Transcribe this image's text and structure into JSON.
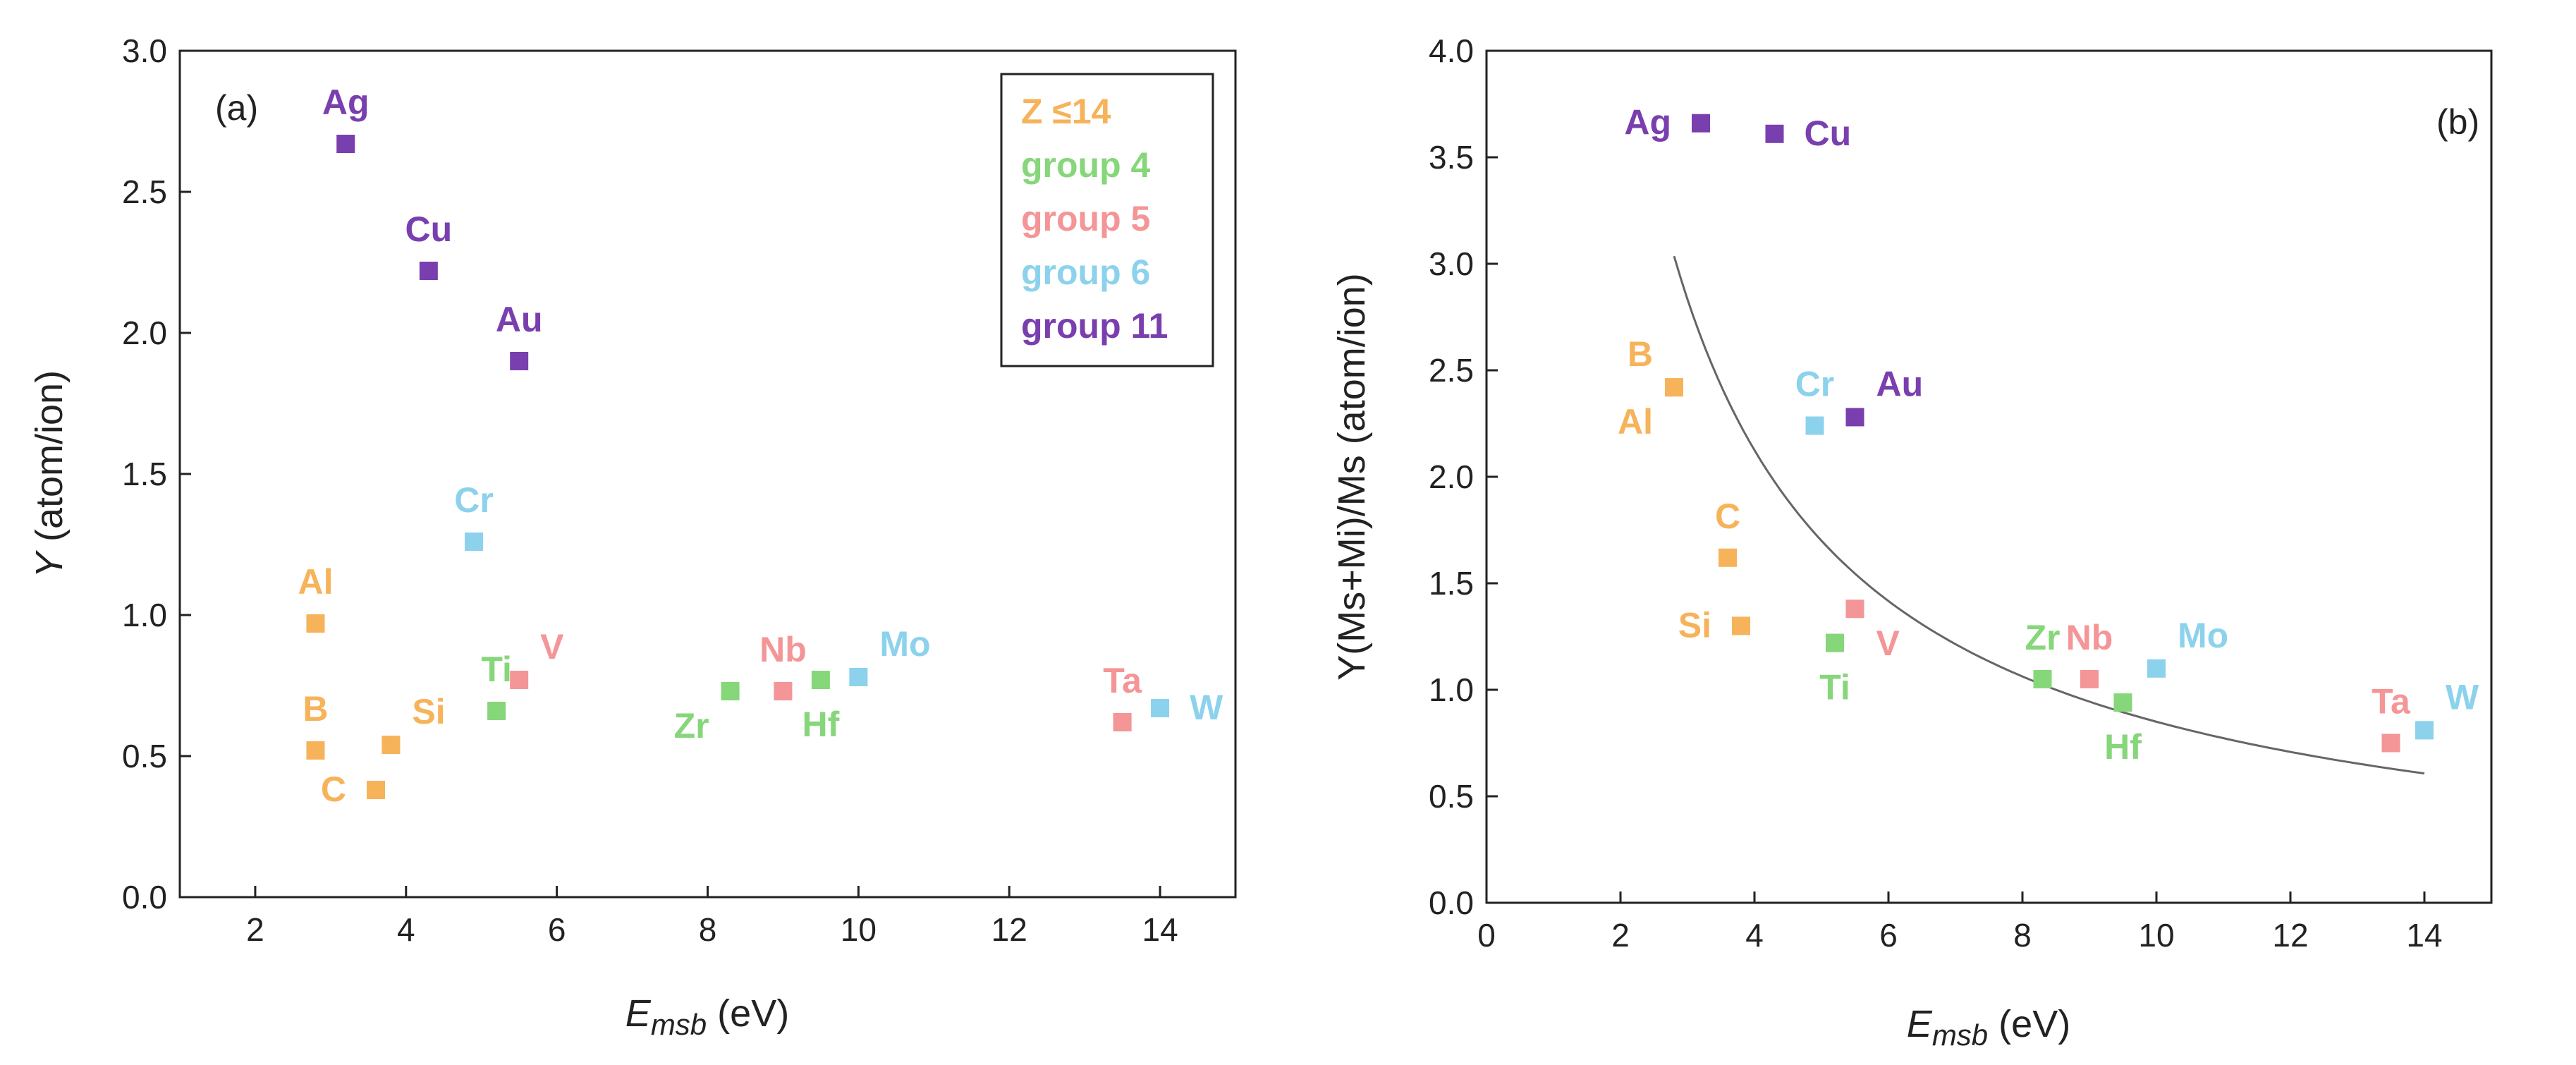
{
  "colors": {
    "low_z": "#f6b35a",
    "group4": "#86d67a",
    "group5": "#f49597",
    "group6": "#8cd2ec",
    "group11": "#7a3fae"
  },
  "chart_data": [
    {
      "type": "scatter",
      "panel_label": "(a)",
      "xlabel": {
        "main": "E",
        "sub": "msb",
        "unit": " (eV)"
      },
      "ylabel": {
        "main": "Y",
        "unit": " (atom/ion)"
      },
      "xlim": [
        1,
        15
      ],
      "ylim": [
        0,
        3.0
      ],
      "xticks": [
        "2",
        "4",
        "6",
        "8",
        "10",
        "12",
        "14"
      ],
      "xtick_values": [
        2,
        4,
        6,
        8,
        10,
        12,
        14
      ],
      "yticks": [
        "0.0",
        "0.5",
        "1.0",
        "1.5",
        "2.0",
        "2.5",
        "3.0"
      ],
      "ytick_values": [
        0,
        0.5,
        1.0,
        1.5,
        2.0,
        2.5,
        3.0
      ],
      "legend": {
        "position": "top-right",
        "entries": [
          {
            "label": "Z ≤14",
            "group": "low_z"
          },
          {
            "label": "group 4",
            "group": "group4"
          },
          {
            "label": "group 5",
            "group": "group5"
          },
          {
            "label": "group 6",
            "group": "group6"
          },
          {
            "label": "group 11",
            "group": "group11"
          }
        ]
      },
      "points": [
        {
          "label": "Ag",
          "x": 3.2,
          "y": 2.67,
          "group": "group11",
          "label_pos": "above"
        },
        {
          "label": "Cu",
          "x": 4.3,
          "y": 2.22,
          "group": "group11",
          "label_pos": "above"
        },
        {
          "label": "Au",
          "x": 5.5,
          "y": 1.9,
          "group": "group11",
          "label_pos": "above"
        },
        {
          "label": "Cr",
          "x": 4.9,
          "y": 1.26,
          "group": "group6",
          "label_pos": "above"
        },
        {
          "label": "Al",
          "x": 2.8,
          "y": 0.97,
          "group": "low_z",
          "label_pos": "above"
        },
        {
          "label": "B",
          "x": 2.8,
          "y": 0.52,
          "group": "low_z",
          "label_pos": "above"
        },
        {
          "label": "Si",
          "x": 3.8,
          "y": 0.54,
          "group": "low_z",
          "label_pos": "above-right"
        },
        {
          "label": "C",
          "x": 3.6,
          "y": 0.38,
          "group": "low_z",
          "label_pos": "left"
        },
        {
          "label": "Ti",
          "x": 5.2,
          "y": 0.66,
          "group": "group4",
          "label_pos": "above"
        },
        {
          "label": "V",
          "x": 5.5,
          "y": 0.77,
          "group": "group5",
          "label_pos": "above-right"
        },
        {
          "label": "Zr",
          "x": 8.3,
          "y": 0.73,
          "group": "group4",
          "label_pos": "below-left"
        },
        {
          "label": "Nb",
          "x": 9.0,
          "y": 0.73,
          "group": "group5",
          "label_pos": "above"
        },
        {
          "label": "Hf",
          "x": 9.5,
          "y": 0.77,
          "group": "group4",
          "label_pos": "below"
        },
        {
          "label": "Mo",
          "x": 10.0,
          "y": 0.78,
          "group": "group6",
          "label_pos": "above-right"
        },
        {
          "label": "Ta",
          "x": 13.5,
          "y": 0.62,
          "group": "group5",
          "label_pos": "above"
        },
        {
          "label": "W",
          "x": 14.0,
          "y": 0.67,
          "group": "group6",
          "label_pos": "right"
        }
      ]
    },
    {
      "type": "scatter",
      "panel_label": "(b)",
      "xlabel": {
        "main": "E",
        "sub": "msb",
        "unit": " (eV)"
      },
      "ylabel": {
        "text": "Y(Ms+Mi)/Ms (atom/ion)"
      },
      "xlim": [
        0,
        15
      ],
      "ylim": [
        0,
        4.0
      ],
      "xticks": [
        "0",
        "2",
        "4",
        "6",
        "8",
        "10",
        "12",
        "14"
      ],
      "xtick_values": [
        0,
        2,
        4,
        6,
        8,
        10,
        12,
        14
      ],
      "yticks": [
        "0.0",
        "0.5",
        "1.0",
        "1.5",
        "2.0",
        "2.5",
        "3.0",
        "3.5",
        "4.0"
      ],
      "ytick_values": [
        0,
        0.5,
        1.0,
        1.5,
        2.0,
        2.5,
        3.0,
        3.5,
        4.0
      ],
      "fit_curve": {
        "form": "y = 8.5 / x",
        "x_range": [
          2.8,
          14.0
        ]
      },
      "points": [
        {
          "label": "Ag",
          "x": 3.2,
          "y": 3.66,
          "group": "group11",
          "label_pos": "left"
        },
        {
          "label": "Cu",
          "x": 4.3,
          "y": 3.61,
          "group": "group11",
          "label_pos": "right"
        },
        {
          "label": "B",
          "x": 2.8,
          "y": 2.42,
          "group": "low_z",
          "label_pos": "above-left"
        },
        {
          "label": "Al",
          "x": 2.8,
          "y": 2.42,
          "group": "low_z",
          "label_pos": "below-left"
        },
        {
          "label": "Cr",
          "x": 4.9,
          "y": 2.24,
          "group": "group6",
          "label_pos": "above"
        },
        {
          "label": "Au",
          "x": 5.5,
          "y": 2.28,
          "group": "group11",
          "label_pos": "above-right"
        },
        {
          "label": "C",
          "x": 3.6,
          "y": 1.62,
          "group": "low_z",
          "label_pos": "above"
        },
        {
          "label": "Si",
          "x": 3.8,
          "y": 1.3,
          "group": "low_z",
          "label_pos": "left"
        },
        {
          "label": "V",
          "x": 5.5,
          "y": 1.38,
          "group": "group5",
          "label_pos": "below-right"
        },
        {
          "label": "Ti",
          "x": 5.2,
          "y": 1.22,
          "group": "group4",
          "label_pos": "below"
        },
        {
          "label": "Zr",
          "x": 8.3,
          "y": 1.05,
          "group": "group4",
          "label_pos": "above"
        },
        {
          "label": "Nb",
          "x": 9.0,
          "y": 1.05,
          "group": "group5",
          "label_pos": "above"
        },
        {
          "label": "Hf",
          "x": 9.5,
          "y": 0.94,
          "group": "group4",
          "label_pos": "below"
        },
        {
          "label": "Mo",
          "x": 10.0,
          "y": 1.1,
          "group": "group6",
          "label_pos": "above-right"
        },
        {
          "label": "Ta",
          "x": 13.5,
          "y": 0.75,
          "group": "group5",
          "label_pos": "above"
        },
        {
          "label": "W",
          "x": 14.0,
          "y": 0.81,
          "group": "group6",
          "label_pos": "above-right"
        }
      ]
    }
  ]
}
